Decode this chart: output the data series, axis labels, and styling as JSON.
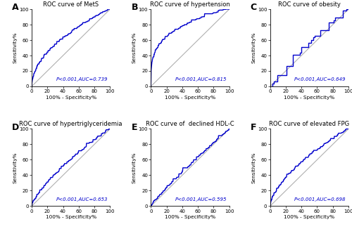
{
  "panels": [
    {
      "label": "A",
      "title": "ROC curve of MetS",
      "annotation": "P<0.001,AUC=0.739",
      "power": 0.52,
      "jagged": true,
      "big_steps": false
    },
    {
      "label": "B",
      "title": "ROC curve of hypertension",
      "annotation": "P<0.001,AUC=0.815",
      "power": 0.28,
      "jagged": true,
      "big_steps": false
    },
    {
      "label": "C",
      "title": "ROC curve of obesity",
      "annotation": "P<0.001,AUC=0.649",
      "power": 0.8,
      "jagged": false,
      "big_steps": true
    },
    {
      "label": "D",
      "title": "ROC curve of hypertriglyceridemia",
      "annotation": "P<0.001,AUC=0.653",
      "power": 0.74,
      "jagged": true,
      "big_steps": false
    },
    {
      "label": "E",
      "title": "ROC curve of  declined HDL-C",
      "annotation": "P<0.001,AUC=0.595",
      "power": 0.92,
      "jagged": true,
      "big_steps": false
    },
    {
      "label": "F",
      "title": "ROC curve of elevated FPG",
      "annotation": "P<0.001,AUC=0.698",
      "power": 0.63,
      "jagged": true,
      "big_steps": false
    }
  ],
  "line_color": "#0000CC",
  "diag_color": "#B0B0B0",
  "annot_color": "#0000CC",
  "xlabel": "100% - Specificity%",
  "ylabel": "Sensitivity%",
  "tick_values": [
    0,
    20,
    40,
    60,
    80,
    100
  ],
  "figsize": [
    5.0,
    3.26
  ],
  "dpi": 100
}
